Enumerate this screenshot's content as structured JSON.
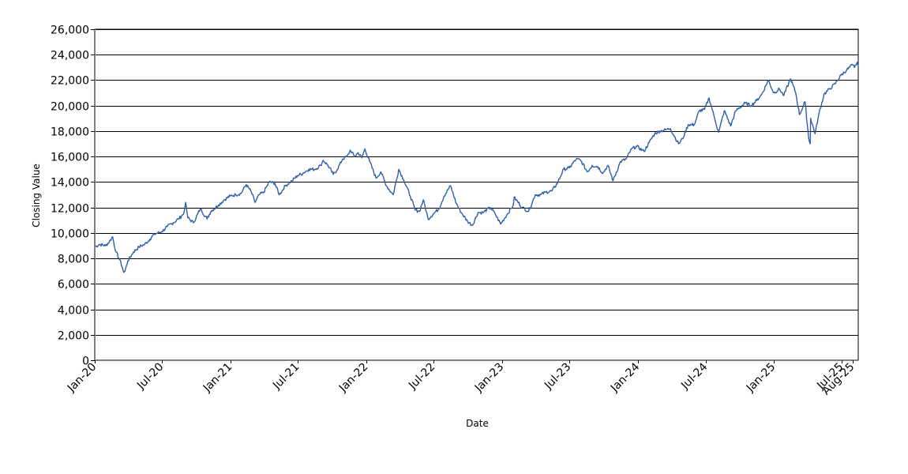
{
  "chart_data": {
    "type": "line",
    "title": "",
    "xlabel": "Date",
    "ylabel": "Closing Value",
    "ylim": [
      0,
      26000
    ],
    "xlim": [
      "2020-01-02",
      "2025-08-15"
    ],
    "grid": {
      "horizontal": true,
      "vertical": false
    },
    "legend": "none",
    "y_ticks": [
      0,
      2000,
      4000,
      6000,
      8000,
      10000,
      12000,
      14000,
      16000,
      18000,
      20000,
      22000,
      24000,
      26000
    ],
    "y_tick_labels": [
      "0",
      "2,000",
      "4,000",
      "6,000",
      "8,000",
      "10,000",
      "12,000",
      "14,000",
      "16,000",
      "18,000",
      "20,000",
      "22,000",
      "24,000",
      "26,000"
    ],
    "x_ticks": [
      {
        "date": "2020-01-01",
        "label": "Jan-20"
      },
      {
        "date": "2020-07-01",
        "label": "Jul-20"
      },
      {
        "date": "2021-01-01",
        "label": "Jan-21"
      },
      {
        "date": "2021-07-01",
        "label": "Jul-21"
      },
      {
        "date": "2022-01-01",
        "label": "Jan-22"
      },
      {
        "date": "2022-07-01",
        "label": "Jul-22"
      },
      {
        "date": "2023-01-01",
        "label": "Jan-23"
      },
      {
        "date": "2023-07-01",
        "label": "Jul-23"
      },
      {
        "date": "2024-01-01",
        "label": "Jan-24"
      },
      {
        "date": "2024-07-01",
        "label": "Jul-24"
      },
      {
        "date": "2025-01-01",
        "label": "Jan-25"
      },
      {
        "date": "2025-07-01",
        "label": "Jul-25"
      },
      {
        "date": "2025-08-01",
        "label": "Aug-25"
      }
    ],
    "series": [
      {
        "color": "#2e5fa8",
        "points": [
          [
            "2020-01-02",
            8900
          ],
          [
            "2020-01-15",
            9100
          ],
          [
            "2020-01-31",
            9000
          ],
          [
            "2020-02-10",
            9300
          ],
          [
            "2020-02-19",
            9700
          ],
          [
            "2020-02-28",
            8500
          ],
          [
            "2020-03-09",
            7900
          ],
          [
            "2020-03-16",
            7300
          ],
          [
            "2020-03-20",
            6900
          ],
          [
            "2020-03-23",
            7000
          ],
          [
            "2020-03-31",
            7800
          ],
          [
            "2020-04-15",
            8500
          ],
          [
            "2020-04-30",
            8900
          ],
          [
            "2020-05-15",
            9100
          ],
          [
            "2020-05-29",
            9500
          ],
          [
            "2020-06-10",
            9900
          ],
          [
            "2020-06-30",
            10100
          ],
          [
            "2020-07-15",
            10500
          ],
          [
            "2020-07-31",
            10800
          ],
          [
            "2020-08-14",
            11100
          ],
          [
            "2020-08-28",
            11500
          ],
          [
            "2020-09-02",
            12400
          ],
          [
            "2020-09-08",
            11200
          ],
          [
            "2020-09-23",
            10800
          ],
          [
            "2020-10-12",
            11900
          ],
          [
            "2020-10-30",
            11100
          ],
          [
            "2020-11-09",
            11700
          ],
          [
            "2020-11-30",
            12200
          ],
          [
            "2020-12-15",
            12600
          ],
          [
            "2020-12-31",
            12900
          ],
          [
            "2021-01-15",
            13000
          ],
          [
            "2021-01-29",
            13100
          ],
          [
            "2021-02-12",
            13800
          ],
          [
            "2021-02-26",
            13200
          ],
          [
            "2021-03-08",
            12400
          ],
          [
            "2021-03-19",
            13000
          ],
          [
            "2021-03-31",
            13200
          ],
          [
            "2021-04-15",
            14000
          ],
          [
            "2021-04-30",
            13900
          ],
          [
            "2021-05-12",
            13000
          ],
          [
            "2021-05-28",
            13700
          ],
          [
            "2021-06-15",
            14100
          ],
          [
            "2021-06-30",
            14500
          ],
          [
            "2021-07-15",
            14700
          ],
          [
            "2021-07-30",
            15000
          ],
          [
            "2021-08-16",
            15000
          ],
          [
            "2021-08-31",
            15300
          ],
          [
            "2021-09-07",
            15700
          ],
          [
            "2021-09-20",
            15300
          ],
          [
            "2021-10-04",
            14600
          ],
          [
            "2021-10-15",
            15000
          ],
          [
            "2021-10-29",
            15800
          ],
          [
            "2021-11-10",
            16000
          ],
          [
            "2021-11-19",
            16500
          ],
          [
            "2021-11-30",
            16000
          ],
          [
            "2021-12-10",
            16300
          ],
          [
            "2021-12-20",
            15900
          ],
          [
            "2021-12-28",
            16600
          ],
          [
            "2022-01-10",
            15600
          ],
          [
            "2022-01-27",
            14300
          ],
          [
            "2022-02-09",
            14800
          ],
          [
            "2022-02-24",
            13700
          ],
          [
            "2022-03-14",
            13000
          ],
          [
            "2022-03-29",
            15000
          ],
          [
            "2022-04-11",
            14200
          ],
          [
            "2022-04-29",
            12900
          ],
          [
            "2022-05-12",
            11800
          ],
          [
            "2022-05-24",
            11700
          ],
          [
            "2022-06-03",
            12600
          ],
          [
            "2022-06-16",
            11100
          ],
          [
            "2022-06-30",
            11500
          ],
          [
            "2022-07-15",
            11900
          ],
          [
            "2022-07-29",
            12900
          ],
          [
            "2022-08-15",
            13700
          ],
          [
            "2022-08-31",
            12300
          ],
          [
            "2022-09-13",
            11600
          ],
          [
            "2022-09-30",
            10900
          ],
          [
            "2022-10-13",
            10600
          ],
          [
            "2022-10-28",
            11600
          ],
          [
            "2022-11-10",
            11600
          ],
          [
            "2022-11-30",
            12000
          ],
          [
            "2022-12-13",
            11500
          ],
          [
            "2022-12-28",
            10700
          ],
          [
            "2023-01-13",
            11400
          ],
          [
            "2023-01-31",
            12200
          ],
          [
            "2023-02-02",
            12800
          ],
          [
            "2023-02-24",
            12000
          ],
          [
            "2023-03-13",
            11700
          ],
          [
            "2023-03-31",
            13000
          ],
          [
            "2023-04-14",
            13000
          ],
          [
            "2023-04-28",
            13200
          ],
          [
            "2023-05-15",
            13300
          ],
          [
            "2023-05-31",
            14000
          ],
          [
            "2023-06-15",
            15000
          ],
          [
            "2023-06-30",
            15100
          ],
          [
            "2023-07-19",
            15800
          ],
          [
            "2023-07-31",
            15700
          ],
          [
            "2023-08-18",
            14800
          ],
          [
            "2023-08-31",
            15300
          ],
          [
            "2023-09-15",
            15200
          ],
          [
            "2023-09-29",
            14700
          ],
          [
            "2023-10-12",
            15300
          ],
          [
            "2023-10-26",
            14100
          ],
          [
            "2023-11-15",
            15600
          ],
          [
            "2023-11-30",
            15800
          ],
          [
            "2023-12-15",
            16600
          ],
          [
            "2023-12-29",
            16800
          ],
          [
            "2024-01-17",
            16400
          ],
          [
            "2024-01-31",
            17100
          ],
          [
            "2024-02-15",
            17800
          ],
          [
            "2024-02-29",
            18000
          ],
          [
            "2024-03-15",
            18100
          ],
          [
            "2024-03-28",
            18200
          ],
          [
            "2024-04-19",
            17000
          ],
          [
            "2024-04-30",
            17400
          ],
          [
            "2024-05-15",
            18500
          ],
          [
            "2024-05-31",
            18500
          ],
          [
            "2024-06-14",
            19600
          ],
          [
            "2024-06-28",
            19700
          ],
          [
            "2024-07-10",
            20600
          ],
          [
            "2024-07-25",
            19000
          ],
          [
            "2024-08-05",
            17900
          ],
          [
            "2024-08-20",
            19600
          ],
          [
            "2024-09-06",
            18400
          ],
          [
            "2024-09-20",
            19600
          ],
          [
            "2024-10-15",
            20200
          ],
          [
            "2024-10-31",
            20000
          ],
          [
            "2024-11-15",
            20400
          ],
          [
            "2024-11-29",
            20900
          ],
          [
            "2024-12-16",
            22000
          ],
          [
            "2024-12-31",
            21000
          ],
          [
            "2025-01-15",
            21300
          ],
          [
            "2025-01-27",
            20800
          ],
          [
            "2025-02-14",
            22100
          ],
          [
            "2025-02-28",
            21000
          ],
          [
            "2025-03-10",
            19300
          ],
          [
            "2025-03-25",
            20300
          ],
          [
            "2025-04-04",
            17400
          ],
          [
            "2025-04-08",
            17000
          ],
          [
            "2025-04-09",
            19000
          ],
          [
            "2025-04-21",
            17800
          ],
          [
            "2025-05-01",
            19300
          ],
          [
            "2025-05-15",
            20900
          ],
          [
            "2025-05-30",
            21300
          ],
          [
            "2025-06-13",
            21700
          ],
          [
            "2025-06-30",
            22400
          ],
          [
            "2025-07-15",
            22800
          ],
          [
            "2025-07-31",
            23200
          ],
          [
            "2025-08-05",
            23000
          ],
          [
            "2025-08-12",
            23400
          ],
          [
            "2025-08-15",
            23100
          ]
        ]
      }
    ]
  }
}
